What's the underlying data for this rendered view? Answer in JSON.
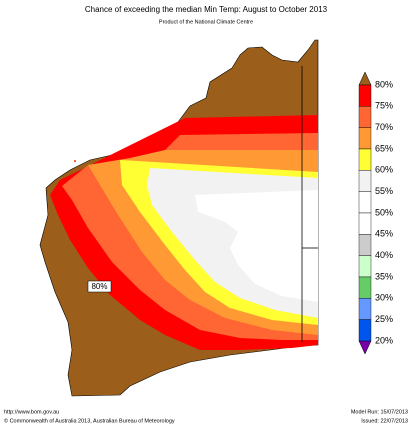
{
  "title": "Chance of exceeding the median Min Temp: August to October 2013",
  "subtitle": "Product of the National Climate Centre",
  "map_label": "80%",
  "legend": {
    "labels": [
      "80%",
      "75%",
      "70%",
      "65%",
      "60%",
      "55%",
      "50%",
      "45%",
      "40%",
      "35%",
      "30%",
      "25%",
      "20%"
    ],
    "bands": [
      "#ff0000",
      "#ff6633",
      "#ff9933",
      "#ffff33",
      "#f2f2f2",
      "#ffffff",
      "#ffffff",
      "#cccccc",
      "#ccffcc",
      "#66cc66",
      "#6699ff",
      "#0055ee"
    ],
    "over_color": "#9c5f1b",
    "under_color": "#7a00aa"
  },
  "footer": {
    "url": "http://www.bom.gov.au",
    "copyright": "©  Commonwealth of Australia 2013, Australian Bureau of Meteorology",
    "model_run": "Model Run: 15/07/2013",
    "issued": "Issued: 22/07/2013"
  }
}
